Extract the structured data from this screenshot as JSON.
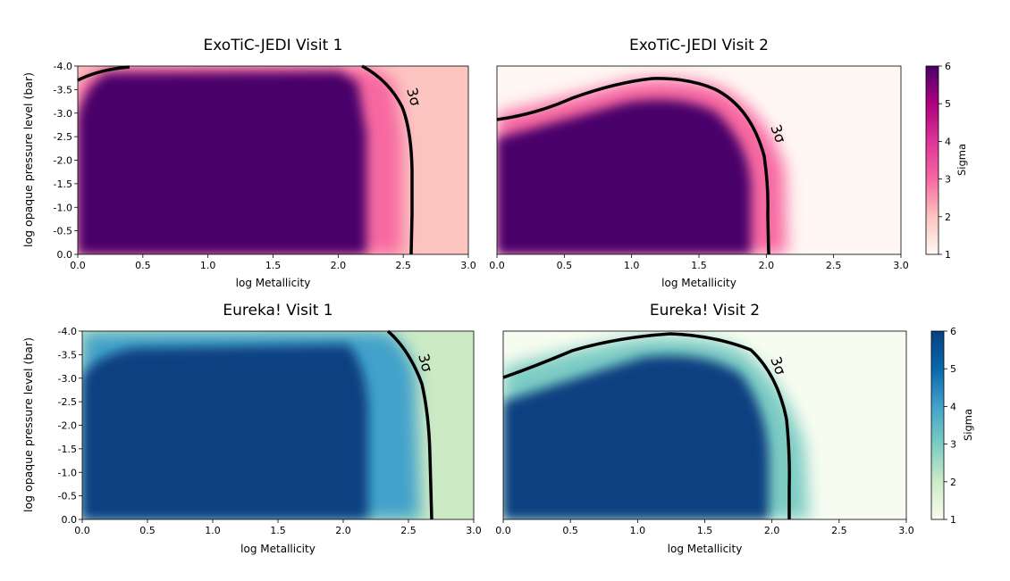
{
  "chart_data": [
    {
      "type": "heatmap",
      "title": "ExoTiC-JEDI Visit 1",
      "xlabel": "log Metallicity",
      "ylabel": "log opaque pressure level (bar)",
      "xlim": [
        0.0,
        3.0
      ],
      "ylim": [
        0.0,
        -4.0
      ],
      "xticks": [
        "0.0",
        "0.5",
        "1.0",
        "1.5",
        "2.0",
        "2.5",
        "3.0"
      ],
      "yticks": [
        "-4.0",
        "-3.5",
        "-3.0",
        "-2.5",
        "-2.0",
        "-1.5",
        "-1.0",
        "-0.5",
        "0.0"
      ],
      "colorscale": "RdPu",
      "contour_label": "3σ",
      "contour_3sigma": [
        [
          0.0,
          -3.7
        ],
        [
          0.15,
          -3.88
        ],
        [
          0.4,
          -4.0
        ]
      ],
      "contour_3sigma_2": [
        [
          2.2,
          -4.0
        ],
        [
          2.38,
          -3.7
        ],
        [
          2.48,
          -3.3
        ],
        [
          2.52,
          -2.8
        ],
        [
          2.55,
          -2.0
        ],
        [
          2.55,
          -1.0
        ],
        [
          2.56,
          0.0
        ]
      ]
    },
    {
      "type": "heatmap",
      "title": "ExoTiC-JEDI Visit 2",
      "xlabel": "log Metallicity",
      "xlim": [
        0.0,
        3.0
      ],
      "ylim": [
        0.0,
        -4.0
      ],
      "xticks": [
        "0.0",
        "0.5",
        "1.0",
        "1.5",
        "2.0",
        "2.5",
        "3.0"
      ],
      "colorscale": "RdPu",
      "contour_label": "3σ",
      "contour_3sigma": [
        [
          0.0,
          -2.85
        ],
        [
          0.25,
          -3.05
        ],
        [
          0.5,
          -3.4
        ],
        [
          0.8,
          -3.65
        ],
        [
          1.2,
          -3.75
        ],
        [
          1.45,
          -3.7
        ],
        [
          1.7,
          -3.3
        ],
        [
          1.9,
          -2.7
        ],
        [
          1.98,
          -2.0
        ],
        [
          2.0,
          -1.0
        ],
        [
          2.02,
          0.0
        ]
      ]
    },
    {
      "type": "heatmap",
      "title": "Eureka! Visit 1",
      "xlabel": "log Metallicity",
      "ylabel": "log opaque pressure level (bar)",
      "xlim": [
        0.0,
        3.0
      ],
      "ylim": [
        0.0,
        -4.0
      ],
      "xticks": [
        "0.0",
        "0.5",
        "1.0",
        "1.5",
        "2.0",
        "2.5",
        "3.0"
      ],
      "yticks": [
        "-4.0",
        "-3.5",
        "-3.0",
        "-2.5",
        "-2.0",
        "-1.5",
        "-1.0",
        "-0.5",
        "0.0"
      ],
      "colorscale": "GnBu",
      "contour_label": "3σ",
      "contour_3sigma": [
        [
          2.35,
          -4.0
        ],
        [
          2.5,
          -3.65
        ],
        [
          2.6,
          -3.1
        ],
        [
          2.65,
          -2.4
        ],
        [
          2.67,
          -1.5
        ],
        [
          2.67,
          0.0
        ]
      ]
    },
    {
      "type": "heatmap",
      "title": "Eureka! Visit 2",
      "xlabel": "log Metallicity",
      "xlim": [
        0.0,
        3.0
      ],
      "ylim": [
        0.0,
        -4.0
      ],
      "xticks": [
        "0.0",
        "0.5",
        "1.0",
        "1.5",
        "2.0",
        "2.5",
        "3.0"
      ],
      "colorscale": "GnBu",
      "contour_label": "3σ",
      "contour_3sigma": [
        [
          0.0,
          -3.05
        ],
        [
          0.25,
          -3.35
        ],
        [
          0.55,
          -3.75
        ],
        [
          0.9,
          -3.92
        ],
        [
          1.25,
          -3.98
        ],
        [
          1.55,
          -3.9
        ],
        [
          1.85,
          -3.5
        ],
        [
          2.05,
          -2.85
        ],
        [
          2.13,
          -2.0
        ],
        [
          2.14,
          -1.0
        ],
        [
          2.14,
          0.0
        ]
      ]
    }
  ],
  "colorbars": [
    {
      "label": "Sigma",
      "ticks": [
        "1",
        "2",
        "3",
        "4",
        "5",
        "6"
      ],
      "range": [
        1,
        6
      ],
      "colorscale": "RdPu"
    },
    {
      "label": "Sigma",
      "ticks": [
        "1",
        "2",
        "3",
        "4",
        "5",
        "6"
      ],
      "range": [
        1,
        6
      ],
      "colorscale": "GnBu"
    }
  ]
}
